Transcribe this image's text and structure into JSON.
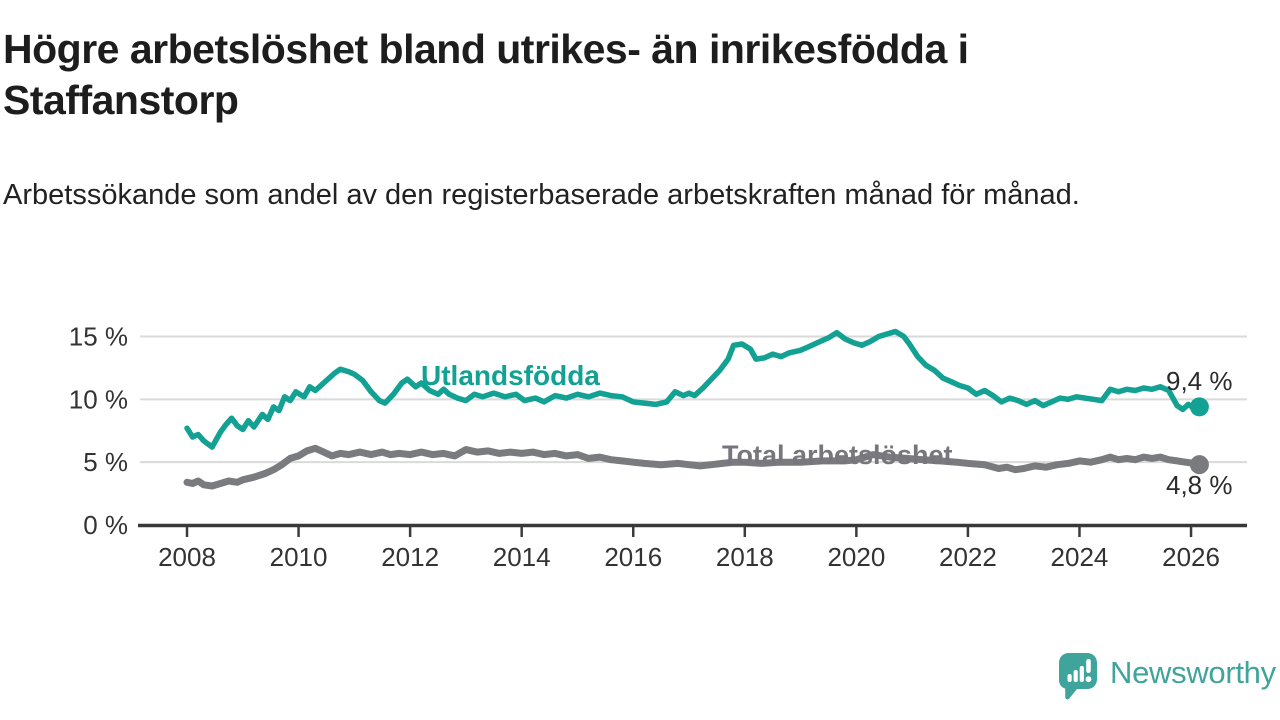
{
  "header": {
    "title": "Högre arbetslöshet bland utrikes- än inrikesfödda i Staffanstorp",
    "subtitle": "Arbetssökande som andel av den registerbaserade arbetskraften månad för månad."
  },
  "chart_data": {
    "type": "line",
    "x_axis": {
      "ticks": [
        2008,
        2010,
        2012,
        2014,
        2016,
        2018,
        2020,
        2022,
        2024,
        2026
      ],
      "range": [
        2007.2,
        2027.0
      ],
      "grid": false
    },
    "y_axis": {
      "ticks": [
        0,
        5,
        10,
        15
      ],
      "labels": [
        "0 %",
        "5 %",
        "10 %",
        "15 %"
      ],
      "range": [
        0,
        16.5
      ],
      "grid": true
    },
    "series": [
      {
        "name": "Utlandsfödda",
        "color": "#12a192",
        "end_label": "9,4 %",
        "end_value": 9.4,
        "points": [
          [
            2008.0,
            7.7
          ],
          [
            2008.1,
            7.0
          ],
          [
            2008.2,
            7.2
          ],
          [
            2008.3,
            6.7
          ],
          [
            2008.45,
            6.2
          ],
          [
            2008.6,
            7.4
          ],
          [
            2008.7,
            8.0
          ],
          [
            2008.8,
            8.5
          ],
          [
            2008.9,
            7.9
          ],
          [
            2009.0,
            7.6
          ],
          [
            2009.1,
            8.3
          ],
          [
            2009.2,
            7.8
          ],
          [
            2009.35,
            8.8
          ],
          [
            2009.45,
            8.4
          ],
          [
            2009.55,
            9.4
          ],
          [
            2009.65,
            9.1
          ],
          [
            2009.75,
            10.2
          ],
          [
            2009.85,
            9.9
          ],
          [
            2009.95,
            10.6
          ],
          [
            2010.1,
            10.2
          ],
          [
            2010.2,
            11.0
          ],
          [
            2010.3,
            10.7
          ],
          [
            2010.45,
            11.3
          ],
          [
            2010.55,
            11.7
          ],
          [
            2010.65,
            12.1
          ],
          [
            2010.75,
            12.4
          ],
          [
            2010.9,
            12.2
          ],
          [
            2011.0,
            12.0
          ],
          [
            2011.15,
            11.5
          ],
          [
            2011.3,
            10.6
          ],
          [
            2011.45,
            9.9
          ],
          [
            2011.55,
            9.7
          ],
          [
            2011.7,
            10.4
          ],
          [
            2011.85,
            11.3
          ],
          [
            2011.95,
            11.6
          ],
          [
            2012.1,
            11.0
          ],
          [
            2012.2,
            11.3
          ],
          [
            2012.35,
            10.7
          ],
          [
            2012.5,
            10.4
          ],
          [
            2012.6,
            10.8
          ],
          [
            2012.7,
            10.4
          ],
          [
            2012.85,
            10.1
          ],
          [
            2013.0,
            9.9
          ],
          [
            2013.15,
            10.4
          ],
          [
            2013.3,
            10.2
          ],
          [
            2013.5,
            10.5
          ],
          [
            2013.7,
            10.2
          ],
          [
            2013.9,
            10.4
          ],
          [
            2014.05,
            9.9
          ],
          [
            2014.25,
            10.1
          ],
          [
            2014.4,
            9.8
          ],
          [
            2014.6,
            10.3
          ],
          [
            2014.8,
            10.1
          ],
          [
            2015.0,
            10.4
          ],
          [
            2015.2,
            10.2
          ],
          [
            2015.4,
            10.5
          ],
          [
            2015.6,
            10.3
          ],
          [
            2015.8,
            10.2
          ],
          [
            2016.0,
            9.8
          ],
          [
            2016.2,
            9.7
          ],
          [
            2016.4,
            9.6
          ],
          [
            2016.6,
            9.8
          ],
          [
            2016.75,
            10.6
          ],
          [
            2016.9,
            10.3
          ],
          [
            2017.0,
            10.5
          ],
          [
            2017.1,
            10.3
          ],
          [
            2017.25,
            10.9
          ],
          [
            2017.4,
            11.6
          ],
          [
            2017.55,
            12.3
          ],
          [
            2017.7,
            13.2
          ],
          [
            2017.8,
            14.3
          ],
          [
            2017.95,
            14.4
          ],
          [
            2018.1,
            14.0
          ],
          [
            2018.2,
            13.2
          ],
          [
            2018.35,
            13.3
          ],
          [
            2018.5,
            13.6
          ],
          [
            2018.65,
            13.4
          ],
          [
            2018.8,
            13.7
          ],
          [
            2019.0,
            13.9
          ],
          [
            2019.15,
            14.2
          ],
          [
            2019.3,
            14.5
          ],
          [
            2019.5,
            14.9
          ],
          [
            2019.65,
            15.3
          ],
          [
            2019.8,
            14.8
          ],
          [
            2019.95,
            14.5
          ],
          [
            2020.1,
            14.3
          ],
          [
            2020.25,
            14.6
          ],
          [
            2020.4,
            15.0
          ],
          [
            2020.55,
            15.2
          ],
          [
            2020.7,
            15.4
          ],
          [
            2020.85,
            15.0
          ],
          [
            2020.95,
            14.4
          ],
          [
            2021.1,
            13.4
          ],
          [
            2021.25,
            12.7
          ],
          [
            2021.4,
            12.3
          ],
          [
            2021.55,
            11.7
          ],
          [
            2021.7,
            11.4
          ],
          [
            2021.85,
            11.1
          ],
          [
            2022.0,
            10.9
          ],
          [
            2022.15,
            10.4
          ],
          [
            2022.3,
            10.7
          ],
          [
            2022.45,
            10.3
          ],
          [
            2022.6,
            9.8
          ],
          [
            2022.75,
            10.1
          ],
          [
            2022.9,
            9.9
          ],
          [
            2023.05,
            9.6
          ],
          [
            2023.2,
            9.9
          ],
          [
            2023.35,
            9.5
          ],
          [
            2023.5,
            9.8
          ],
          [
            2023.65,
            10.1
          ],
          [
            2023.8,
            10.0
          ],
          [
            2023.95,
            10.2
          ],
          [
            2024.1,
            10.1
          ],
          [
            2024.25,
            10.0
          ],
          [
            2024.4,
            9.9
          ],
          [
            2024.55,
            10.8
          ],
          [
            2024.7,
            10.6
          ],
          [
            2024.85,
            10.8
          ],
          [
            2025.0,
            10.7
          ],
          [
            2025.15,
            10.9
          ],
          [
            2025.3,
            10.8
          ],
          [
            2025.45,
            11.0
          ],
          [
            2025.6,
            10.7
          ],
          [
            2025.75,
            9.5
          ],
          [
            2025.85,
            9.2
          ],
          [
            2025.95,
            9.6
          ],
          [
            2026.05,
            9.3
          ],
          [
            2026.15,
            9.4
          ]
        ]
      },
      {
        "name": "Total arbetslöshet",
        "color": "#7a7b7f",
        "end_label": "4,8 %",
        "end_value": 4.8,
        "points": [
          [
            2008.0,
            3.4
          ],
          [
            2008.1,
            3.3
          ],
          [
            2008.2,
            3.5
          ],
          [
            2008.3,
            3.2
          ],
          [
            2008.45,
            3.1
          ],
          [
            2008.6,
            3.3
          ],
          [
            2008.75,
            3.5
          ],
          [
            2008.9,
            3.4
          ],
          [
            2009.0,
            3.6
          ],
          [
            2009.2,
            3.8
          ],
          [
            2009.4,
            4.1
          ],
          [
            2009.55,
            4.4
          ],
          [
            2009.7,
            4.8
          ],
          [
            2009.85,
            5.3
          ],
          [
            2010.0,
            5.5
          ],
          [
            2010.15,
            5.9
          ],
          [
            2010.3,
            6.1
          ],
          [
            2010.45,
            5.8
          ],
          [
            2010.6,
            5.5
          ],
          [
            2010.75,
            5.7
          ],
          [
            2010.9,
            5.6
          ],
          [
            2011.1,
            5.8
          ],
          [
            2011.3,
            5.6
          ],
          [
            2011.5,
            5.8
          ],
          [
            2011.65,
            5.6
          ],
          [
            2011.8,
            5.7
          ],
          [
            2012.0,
            5.6
          ],
          [
            2012.2,
            5.8
          ],
          [
            2012.4,
            5.6
          ],
          [
            2012.6,
            5.7
          ],
          [
            2012.8,
            5.5
          ],
          [
            2013.0,
            6.0
          ],
          [
            2013.2,
            5.8
          ],
          [
            2013.4,
            5.9
          ],
          [
            2013.6,
            5.7
          ],
          [
            2013.8,
            5.8
          ],
          [
            2014.0,
            5.7
          ],
          [
            2014.2,
            5.8
          ],
          [
            2014.4,
            5.6
          ],
          [
            2014.6,
            5.7
          ],
          [
            2014.8,
            5.5
          ],
          [
            2015.0,
            5.6
          ],
          [
            2015.2,
            5.3
          ],
          [
            2015.4,
            5.4
          ],
          [
            2015.6,
            5.2
          ],
          [
            2015.8,
            5.1
          ],
          [
            2016.0,
            5.0
          ],
          [
            2016.2,
            4.9
          ],
          [
            2016.5,
            4.8
          ],
          [
            2016.8,
            4.9
          ],
          [
            2017.0,
            4.8
          ],
          [
            2017.2,
            4.7
          ],
          [
            2017.4,
            4.8
          ],
          [
            2017.6,
            4.9
          ],
          [
            2017.8,
            5.0
          ],
          [
            2018.0,
            5.0
          ],
          [
            2018.3,
            4.9
          ],
          [
            2018.6,
            5.0
          ],
          [
            2019.0,
            5.0
          ],
          [
            2019.4,
            5.1
          ],
          [
            2019.8,
            5.1
          ],
          [
            2020.0,
            5.2
          ],
          [
            2020.3,
            5.6
          ],
          [
            2020.6,
            5.4
          ],
          [
            2020.9,
            5.3
          ],
          [
            2021.2,
            5.2
          ],
          [
            2021.5,
            5.1
          ],
          [
            2021.8,
            5.0
          ],
          [
            2022.0,
            4.9
          ],
          [
            2022.3,
            4.8
          ],
          [
            2022.55,
            4.5
          ],
          [
            2022.7,
            4.6
          ],
          [
            2022.85,
            4.4
          ],
          [
            2023.0,
            4.5
          ],
          [
            2023.2,
            4.7
          ],
          [
            2023.4,
            4.6
          ],
          [
            2023.6,
            4.8
          ],
          [
            2023.8,
            4.9
          ],
          [
            2024.0,
            5.1
          ],
          [
            2024.2,
            5.0
          ],
          [
            2024.4,
            5.2
          ],
          [
            2024.55,
            5.4
          ],
          [
            2024.7,
            5.2
          ],
          [
            2024.85,
            5.3
          ],
          [
            2025.0,
            5.2
          ],
          [
            2025.15,
            5.4
          ],
          [
            2025.3,
            5.3
          ],
          [
            2025.45,
            5.4
          ],
          [
            2025.6,
            5.2
          ],
          [
            2025.75,
            5.1
          ],
          [
            2025.9,
            5.0
          ],
          [
            2026.05,
            4.9
          ],
          [
            2026.15,
            4.8
          ]
        ]
      }
    ]
  },
  "footer": {
    "brand": "Newsworthy"
  },
  "colors": {
    "accent_teal": "#12a192",
    "series_gray": "#7a7b7f",
    "brand_teal": "#3fa49b",
    "gridline": "#dadada",
    "axis": "#3c3c3c",
    "axis_text": "#333333"
  }
}
